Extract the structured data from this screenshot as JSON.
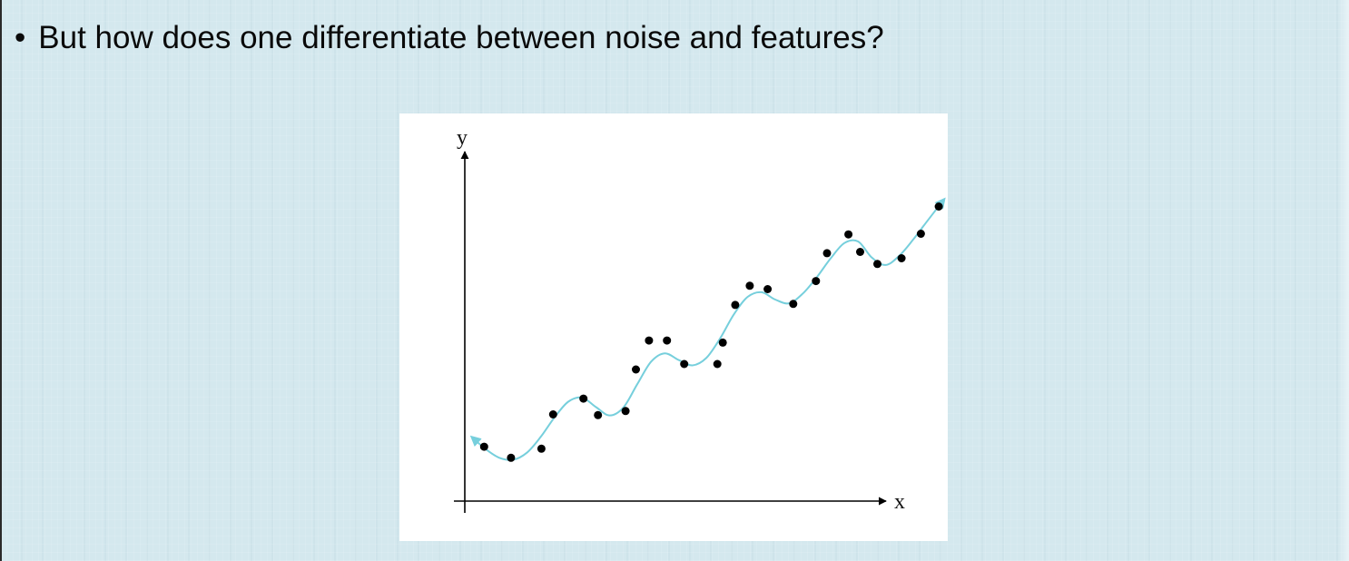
{
  "slide": {
    "bullet_symbol": "•",
    "bullet_text": "But how does one differentiate between noise and features?"
  },
  "chart_data": {
    "type": "scatter",
    "title": "",
    "xlabel": "x",
    "ylabel": "y",
    "show_ticks": false,
    "grid": false,
    "xlim": [
      0,
      10
    ],
    "ylim": [
      0,
      10
    ],
    "points": [
      {
        "x": 0.28,
        "y": 1.62
      },
      {
        "x": 0.67,
        "y": 1.29
      },
      {
        "x": 1.11,
        "y": 1.56
      },
      {
        "x": 1.28,
        "y": 2.58
      },
      {
        "x": 1.72,
        "y": 3.05
      },
      {
        "x": 1.93,
        "y": 2.56
      },
      {
        "x": 2.33,
        "y": 2.68
      },
      {
        "x": 2.48,
        "y": 3.92
      },
      {
        "x": 2.67,
        "y": 4.78
      },
      {
        "x": 2.93,
        "y": 4.78
      },
      {
        "x": 3.18,
        "y": 4.08
      },
      {
        "x": 3.66,
        "y": 4.08
      },
      {
        "x": 3.74,
        "y": 4.72
      },
      {
        "x": 3.92,
        "y": 5.84
      },
      {
        "x": 4.13,
        "y": 6.41
      },
      {
        "x": 4.39,
        "y": 6.31
      },
      {
        "x": 4.76,
        "y": 5.87
      },
      {
        "x": 5.09,
        "y": 6.55
      },
      {
        "x": 5.25,
        "y": 7.38
      },
      {
        "x": 5.56,
        "y": 7.94
      },
      {
        "x": 5.73,
        "y": 7.42
      },
      {
        "x": 5.98,
        "y": 7.06
      },
      {
        "x": 6.33,
        "y": 7.23
      },
      {
        "x": 6.61,
        "y": 7.96
      },
      {
        "x": 6.87,
        "y": 8.77
      }
    ],
    "curve": {
      "description": "smooth oscillating trend through the data with arrowheads at both ends",
      "color": "#76cfdc",
      "x": [
        0.1,
        0.3,
        0.5,
        0.7,
        0.9,
        1.1,
        1.3,
        1.5,
        1.7,
        1.9,
        2.1,
        2.3,
        2.5,
        2.7,
        2.9,
        3.1,
        3.3,
        3.5,
        3.7,
        3.9,
        4.1,
        4.3,
        4.5,
        4.7,
        4.9,
        5.1,
        5.3,
        5.5,
        5.7,
        5.9,
        6.1,
        6.3,
        6.5,
        6.7,
        6.95
      ],
      "y": [
        1.91,
        1.55,
        1.29,
        1.23,
        1.44,
        1.91,
        2.49,
        2.96,
        3.08,
        2.8,
        2.55,
        2.79,
        3.48,
        4.15,
        4.4,
        4.2,
        4.04,
        4.26,
        4.84,
        5.56,
        6.08,
        6.22,
        6.0,
        5.89,
        6.18,
        6.66,
        7.22,
        7.68,
        7.73,
        7.25,
        7.03,
        7.31,
        7.79,
        8.33,
        8.99
      ]
    },
    "marker_color": "#000000",
    "axis_color": "#000000"
  }
}
